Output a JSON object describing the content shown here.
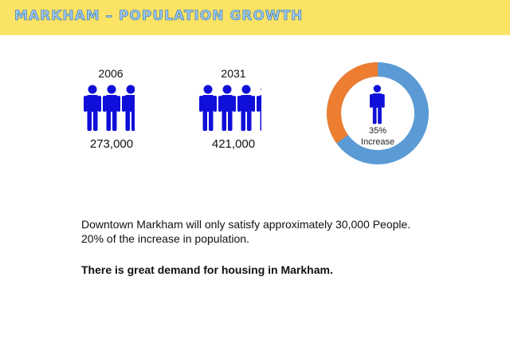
{
  "header": {
    "title": "MARKHAM – POPULATION GROWTH"
  },
  "stats": [
    {
      "year": "2006",
      "population": "273,000"
    },
    {
      "year": "2031",
      "population": "421,000"
    }
  ],
  "increase": {
    "percent": "35%",
    "label": "Increase",
    "fraction": 0.35
  },
  "colors": {
    "header": "#fbe365",
    "person": "#0f0fd9",
    "ring_main": "#5b9bd5",
    "ring_increase": "#ed7d31"
  },
  "text": {
    "line1": "Downtown Markham will only satisfy approximately 30,000 People.",
    "line2": "20% of the increase in population.",
    "emphasis": "There is great demand for housing in Markham."
  }
}
